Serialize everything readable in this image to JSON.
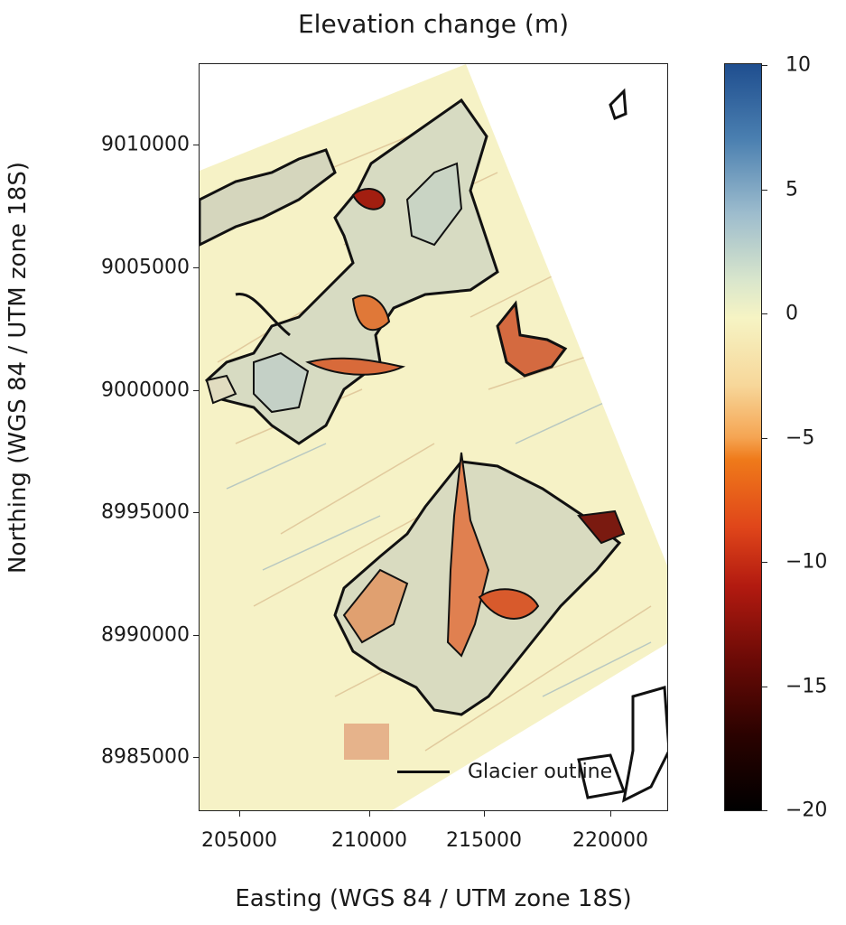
{
  "title": "Elevation change (m)",
  "x_axis": {
    "label": "Easting (WGS 84 / UTM zone 18S)",
    "ticks": [
      "205000",
      "210000",
      "215000",
      "220000"
    ]
  },
  "y_axis": {
    "label": "Northing (WGS 84 / UTM zone 18S)",
    "ticks": [
      "9010000",
      "9005000",
      "9000000",
      "8995000",
      "8990000",
      "8985000"
    ]
  },
  "colorbar": {
    "ticks": [
      "10",
      "5",
      "0",
      "−5",
      "−10",
      "−15",
      "−20"
    ],
    "range": [
      -20,
      10
    ],
    "colors": [
      "#1f4e8f",
      "#9dbccd",
      "#f6f4c4",
      "#ef7a1a",
      "#b21a10",
      "#000000"
    ]
  },
  "legend": {
    "label": "Glacier outline",
    "line_color": "#111111"
  },
  "map_colors": {
    "background": "#f6f2c6",
    "outline": "#111111",
    "loss": "#c9401c",
    "gain": "#5c86b4"
  }
}
